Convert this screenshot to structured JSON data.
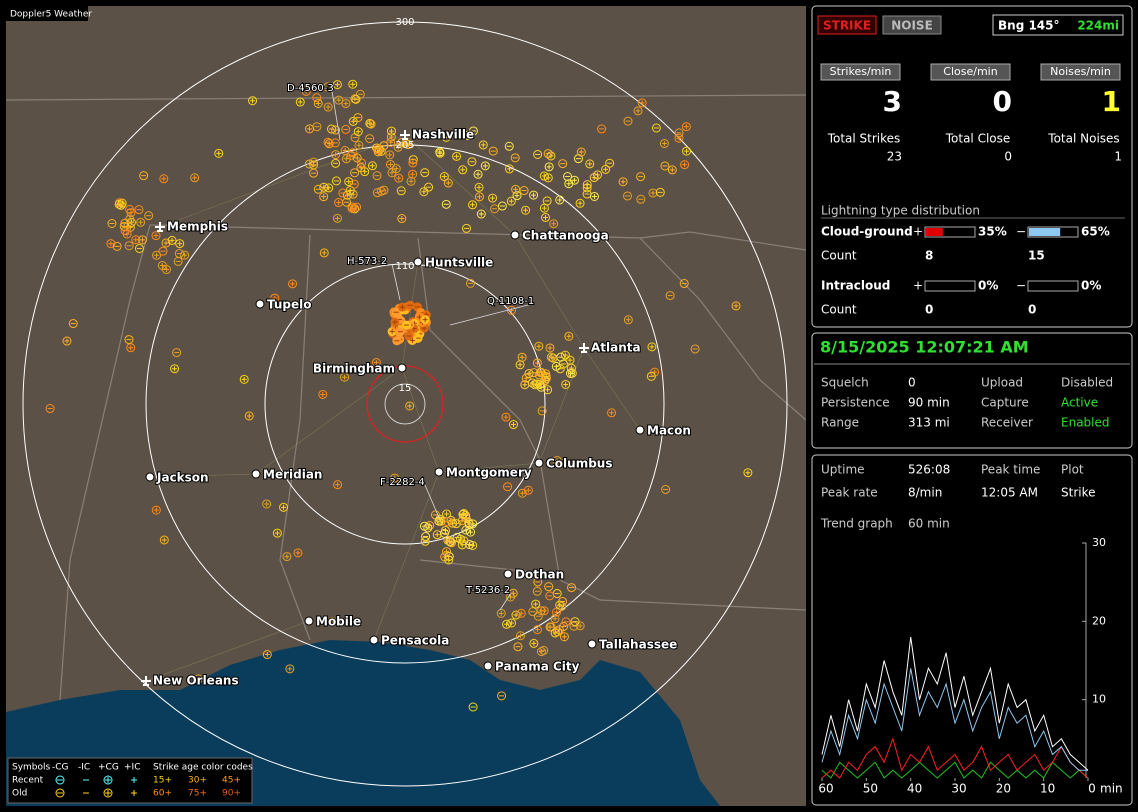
{
  "window_title": "Doppler5 Weather",
  "map": {
    "ring_labels": [
      "300",
      "205",
      "110",
      "15"
    ],
    "airports": [
      "Nashville",
      "Memphis",
      "Atlanta",
      "New Orleans"
    ],
    "cities": [
      "Chattanooga",
      "Huntsville",
      "Tupelo",
      "Birmingham",
      "Macon",
      "Jackson",
      "Meridian",
      "Montgomery",
      "Columbus",
      "Dothan",
      "Mobile",
      "Pensacola",
      "Tallahassee",
      "Panama City"
    ],
    "storm_ids": [
      "D-4560-3",
      "H-573-2",
      "Q-1108-1",
      "F-2282-4",
      "T-5236-2"
    ]
  },
  "legend": {
    "symbols": "Symbols",
    "headers": [
      "-CG",
      "-IC",
      "+CG",
      "+IC"
    ],
    "age_title": "Strike age color codes",
    "rows": [
      "Recent",
      "Old"
    ],
    "ages": [
      [
        "15+",
        "30+",
        "45+"
      ],
      [
        "60+",
        "75+",
        "90+"
      ]
    ]
  },
  "status": {
    "strike": "STRIKE",
    "noise": "NOISE",
    "bearing": "Bng 145°",
    "distance": "224mi",
    "rate_headers": [
      "Strikes/min",
      "Close/min",
      "Noises/min"
    ],
    "rates": [
      "3",
      "0",
      "1"
    ],
    "total_headers": [
      "Total Strikes",
      "Total Close",
      "Total Noises"
    ],
    "totals": [
      "23",
      "0",
      "1"
    ],
    "distribution_title": "Lightning type distribution",
    "types": [
      {
        "name": "Cloud-ground",
        "plus": "+",
        "minus": "−",
        "plus_pct": {
          "value": 35,
          "label": "35%"
        },
        "minus_pct": {
          "value": 65,
          "label": "65%"
        },
        "count_label": "Count",
        "plus_count": "8",
        "minus_count": "15"
      },
      {
        "name": "Intracloud",
        "plus": "+",
        "minus": "−",
        "plus_pct": {
          "value": 0,
          "label": "0%"
        },
        "minus_pct": {
          "value": 0,
          "label": "0%"
        },
        "count_label": "Count",
        "plus_count": "0",
        "minus_count": "0"
      }
    ]
  },
  "clock": {
    "datetime": "8/15/2025 12:07:21 AM",
    "rows": [
      [
        "Squelch",
        "0",
        "Upload",
        "Disabled"
      ],
      [
        "Persistence",
        "90 min",
        "Capture",
        "Active"
      ],
      [
        "Range",
        "313 mi",
        "Receiver",
        "Enabled"
      ]
    ]
  },
  "stats": {
    "rows": [
      [
        "Uptime",
        "526:08",
        "Peak time",
        "Plot"
      ],
      [
        "Peak rate",
        "8/min",
        "12:05 AM",
        "Strike"
      ]
    ],
    "trend_label": "Trend graph",
    "trend_window": "60 min"
  },
  "trend": {
    "type": "line",
    "xlim": [
      60,
      0
    ],
    "ylim": [
      0,
      30
    ],
    "yticks": [
      10,
      20,
      30
    ],
    "xticks": [
      60,
      50,
      40,
      30,
      20,
      10,
      0
    ],
    "x_unit": "min",
    "x": [
      60,
      58,
      56,
      54,
      52,
      50,
      48,
      46,
      44,
      42,
      40,
      38,
      36,
      34,
      32,
      30,
      28,
      26,
      24,
      22,
      20,
      18,
      16,
      14,
      12,
      10,
      8,
      6,
      4,
      2,
      0
    ],
    "series": [
      {
        "color": "#ffffff",
        "values": [
          3,
          8,
          4,
          10,
          6,
          12,
          9,
          15,
          11,
          8,
          18,
          10,
          14,
          12,
          16,
          9,
          13,
          8,
          11,
          14,
          7,
          12,
          9,
          10,
          6,
          8,
          4,
          5,
          3,
          2,
          1
        ]
      },
      {
        "color": "#8ec8f0",
        "values": [
          2,
          6,
          3,
          8,
          5,
          10,
          7,
          12,
          9,
          6,
          14,
          8,
          11,
          9,
          12,
          7,
          10,
          6,
          9,
          11,
          5,
          9,
          7,
          8,
          4,
          6,
          3,
          4,
          2,
          1,
          1
        ]
      },
      {
        "color": "#ff2020",
        "values": [
          0,
          1,
          0,
          2,
          1,
          3,
          4,
          2,
          5,
          1,
          3,
          2,
          4,
          1,
          2,
          3,
          1,
          2,
          4,
          1,
          2,
          3,
          1,
          2,
          3,
          1,
          2,
          4,
          2,
          1,
          0
        ]
      },
      {
        "color": "#20c020",
        "values": [
          1,
          0,
          2,
          1,
          0,
          1,
          2,
          0,
          1,
          0,
          1,
          2,
          1,
          0,
          1,
          2,
          0,
          1,
          0,
          2,
          1,
          0,
          1,
          0,
          1,
          0,
          2,
          1,
          0,
          1,
          0
        ]
      }
    ]
  }
}
